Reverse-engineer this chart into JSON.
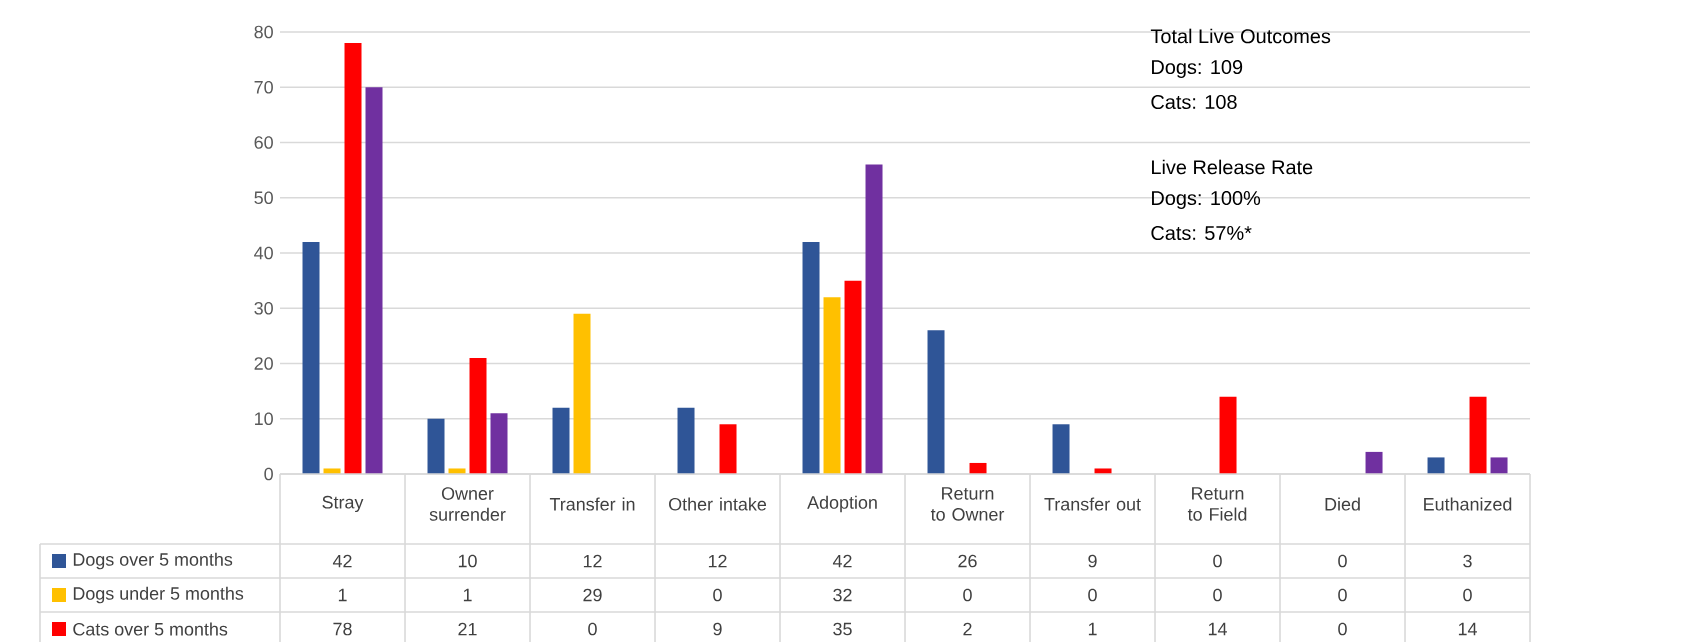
{
  "chart_data": {
    "type": "bar",
    "categories": [
      "Stray",
      "Owner surrender",
      "Transfer in",
      "Other intake",
      "Adoption",
      "Return to Owner",
      "Transfer out",
      "Return to Field",
      "Died",
      "Euthanized"
    ],
    "series": [
      {
        "name": "Dogs over 5 months",
        "color": "#2f5597",
        "values": [
          42,
          10,
          12,
          12,
          42,
          26,
          9,
          0,
          0,
          3
        ],
        "value_labels": [
          "42",
          "10",
          "12",
          "12",
          "42",
          "26",
          "9",
          "0",
          "0",
          "3"
        ]
      },
      {
        "name": "Dogs under 5 months",
        "color": "#ffc000",
        "values": [
          1,
          1,
          29,
          0,
          32,
          0,
          0,
          0,
          0,
          0
        ],
        "value_labels": [
          "1",
          "1",
          "29",
          "0",
          "32",
          "0",
          "0",
          "0",
          "0",
          "0"
        ]
      },
      {
        "name": "Cats over 5 months",
        "color": "#ff0000",
        "values": [
          78,
          21,
          0,
          9,
          35,
          2,
          1,
          14,
          0,
          14
        ],
        "value_labels": [
          "78",
          "21",
          "0",
          "9",
          "35",
          "2",
          "1",
          "14",
          "0",
          "14"
        ]
      },
      {
        "color": "#7030a0",
        "values": [
          70,
          11,
          0,
          0,
          56,
          0,
          0,
          0,
          4,
          3
        ]
      }
    ],
    "ylim": [
      0,
      80
    ],
    "yticks": [
      0,
      10,
      20,
      30,
      40,
      50,
      60,
      70,
      80
    ],
    "grid": "y",
    "legend": "bottom",
    "annotations": [
      "Total Live Outcomes",
      "Dogs: 109",
      "Cats: 108",
      "Live Release Rate",
      "Dogs: 100%",
      "Cats: 57%*"
    ]
  }
}
